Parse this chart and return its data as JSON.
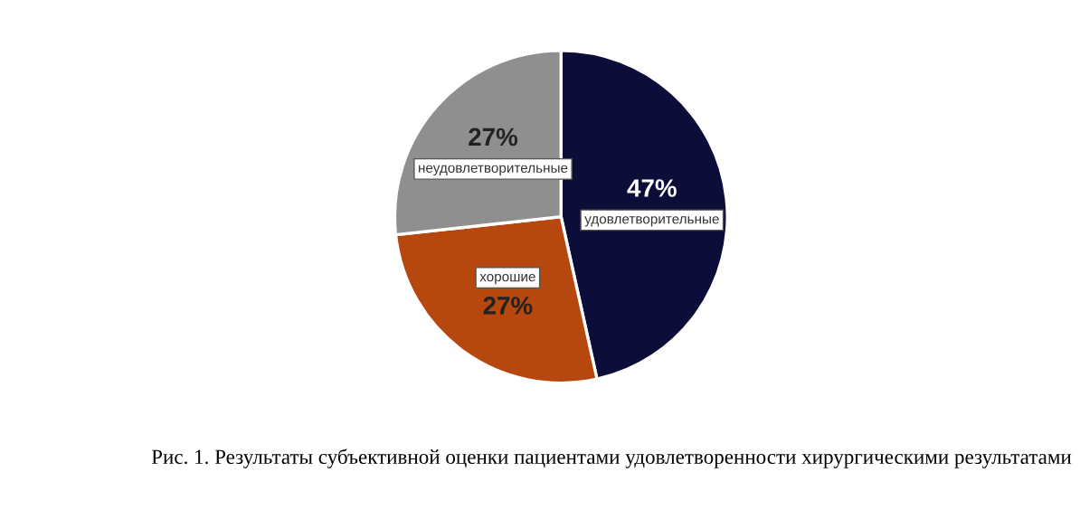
{
  "chart_data": {
    "type": "pie",
    "categories": [
      "удовлетворительные",
      "хорошие",
      "неудовлетворительные"
    ],
    "values": [
      47,
      27,
      27
    ],
    "colors": [
      "#0d0d3a",
      "#b5470f",
      "#8f8f8f"
    ],
    "value_labels": [
      "47%",
      "27%",
      "27%"
    ],
    "annotations": [
      "Рис. 1. Результаты субъективной оценки пациентами удовлетворенности хирургическими результатами"
    ]
  }
}
